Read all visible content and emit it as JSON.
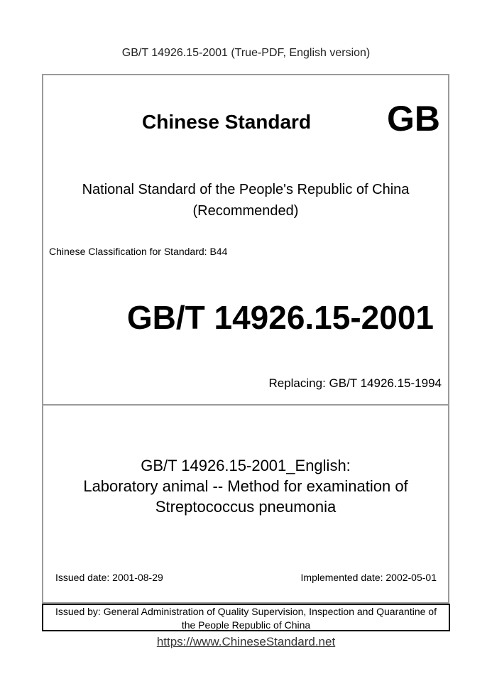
{
  "header": "GB/T 14926.15-2001 (True-PDF, English version)",
  "cover": {
    "chinese_standard": "Chinese Standard",
    "gb_mark": "GB",
    "national_line1": "National Standard of the People's Republic of China",
    "national_line2": "(Recommended)",
    "classification": "Chinese Classification for Standard: B44",
    "code": "GB/T 14926.15-2001",
    "replacing": "Replacing: GB/T 14926.15-1994",
    "title_lines": [
      "GB/T 14926.15-2001_English:",
      "Laboratory animal -- Method for examination of",
      "Streptococcus pneumonia"
    ],
    "issued_date": "Issued date: 2001-08-29",
    "implemented_date": "Implemented date: 2002-05-01",
    "issued_by_line1": "Issued by: General Administration of Quality Supervision, Inspection and Quarantine of",
    "issued_by_line2": "the People Republic of China"
  },
  "footer_link": "https://www.ChineseStandard.net"
}
